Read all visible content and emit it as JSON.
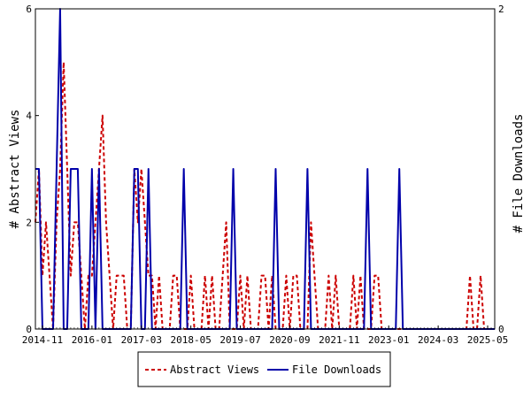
{
  "chart_data": {
    "type": "line",
    "ylabel_left": "# Abstract Views",
    "ylabel_right": "# File Downloads",
    "x_tick_labels": [
      "2014-11",
      "2016-01",
      "2017-03",
      "2018-05",
      "2019-07",
      "2020-09",
      "2021-11",
      "2023-01",
      "2024-03",
      "2025-05"
    ],
    "x_range": [
      "2014-09",
      "2025-07"
    ],
    "y_left_ticks": [
      "0",
      "2",
      "4",
      "6"
    ],
    "y_left_range": [
      0,
      6
    ],
    "y_right_ticks": [
      "0",
      "2"
    ],
    "y_right_range": [
      0,
      2
    ],
    "legend_position": "bottom-center",
    "series": [
      {
        "name": "Abstract Views",
        "axis": "left",
        "color": "#cc0000",
        "style": "dashed",
        "points": [
          [
            "2014-09",
            2
          ],
          [
            "2014-10",
            3
          ],
          [
            "2014-11",
            1
          ],
          [
            "2014-12",
            2
          ],
          [
            "2015-01",
            1
          ],
          [
            "2015-02",
            0
          ],
          [
            "2015-03",
            2
          ],
          [
            "2015-04",
            3
          ],
          [
            "2015-05",
            5
          ],
          [
            "2015-06",
            3
          ],
          [
            "2015-07",
            1
          ],
          [
            "2015-08",
            2
          ],
          [
            "2015-09",
            2
          ],
          [
            "2015-10",
            1
          ],
          [
            "2015-11",
            0
          ],
          [
            "2015-12",
            1
          ],
          [
            "2016-01",
            1
          ],
          [
            "2016-02",
            2
          ],
          [
            "2016-03",
            3
          ],
          [
            "2016-04",
            4
          ],
          [
            "2016-05",
            2
          ],
          [
            "2016-06",
            1
          ],
          [
            "2016-07",
            0
          ],
          [
            "2016-08",
            1
          ],
          [
            "2016-09",
            1
          ],
          [
            "2016-10",
            1
          ],
          [
            "2016-11",
            0
          ],
          [
            "2016-12",
            0
          ],
          [
            "2017-01",
            3
          ],
          [
            "2017-02",
            2
          ],
          [
            "2017-03",
            3
          ],
          [
            "2017-04",
            2
          ],
          [
            "2017-05",
            1
          ],
          [
            "2017-06",
            1
          ],
          [
            "2017-07",
            0
          ],
          [
            "2017-08",
            1
          ],
          [
            "2017-09",
            0
          ],
          [
            "2017-10",
            0
          ],
          [
            "2017-11",
            0
          ],
          [
            "2017-12",
            1
          ],
          [
            "2018-01",
            1
          ],
          [
            "2018-02",
            0
          ],
          [
            "2018-03",
            0
          ],
          [
            "2018-04",
            0
          ],
          [
            "2018-05",
            1
          ],
          [
            "2018-06",
            0
          ],
          [
            "2018-07",
            0
          ],
          [
            "2018-08",
            0
          ],
          [
            "2018-09",
            1
          ],
          [
            "2018-10",
            0
          ],
          [
            "2018-11",
            1
          ],
          [
            "2018-12",
            0
          ],
          [
            "2019-01",
            0
          ],
          [
            "2019-02",
            1
          ],
          [
            "2019-03",
            2
          ],
          [
            "2019-04",
            0
          ],
          [
            "2019-05",
            0
          ],
          [
            "2019-06",
            0
          ],
          [
            "2019-07",
            1
          ],
          [
            "2019-08",
            0
          ],
          [
            "2019-09",
            1
          ],
          [
            "2019-10",
            0
          ],
          [
            "2019-11",
            0
          ],
          [
            "2019-12",
            0
          ],
          [
            "2020-01",
            1
          ],
          [
            "2020-02",
            1
          ],
          [
            "2020-03",
            0
          ],
          [
            "2020-04",
            1
          ],
          [
            "2020-05",
            0
          ],
          [
            "2020-06",
            0
          ],
          [
            "2020-07",
            0
          ],
          [
            "2020-08",
            1
          ],
          [
            "2020-09",
            0
          ],
          [
            "2020-10",
            1
          ],
          [
            "2020-11",
            1
          ],
          [
            "2020-12",
            0
          ],
          [
            "2021-01",
            0
          ],
          [
            "2021-02",
            0
          ],
          [
            "2021-03",
            2
          ],
          [
            "2021-04",
            1
          ],
          [
            "2021-05",
            0
          ],
          [
            "2021-06",
            0
          ],
          [
            "2021-07",
            0
          ],
          [
            "2021-08",
            1
          ],
          [
            "2021-09",
            0
          ],
          [
            "2021-10",
            1
          ],
          [
            "2021-11",
            0
          ],
          [
            "2021-12",
            0
          ],
          [
            "2022-01",
            0
          ],
          [
            "2022-02",
            0
          ],
          [
            "2022-03",
            1
          ],
          [
            "2022-04",
            0
          ],
          [
            "2022-05",
            1
          ],
          [
            "2022-06",
            0
          ],
          [
            "2022-07",
            0
          ],
          [
            "2022-08",
            0
          ],
          [
            "2022-09",
            1
          ],
          [
            "2022-10",
            1
          ],
          [
            "2022-11",
            0
          ],
          [
            "2022-12",
            0
          ],
          [
            "2023-01",
            0
          ],
          [
            "2024-11",
            0
          ],
          [
            "2024-12",
            1
          ],
          [
            "2025-01",
            0
          ],
          [
            "2025-02",
            0
          ],
          [
            "2025-03",
            1
          ],
          [
            "2025-04",
            0
          ],
          [
            "2025-07",
            0
          ]
        ]
      },
      {
        "name": "File Downloads",
        "axis": "right",
        "color": "#0000aa",
        "style": "solid",
        "points": [
          [
            "2014-09",
            1
          ],
          [
            "2014-10",
            1
          ],
          [
            "2014-11",
            0
          ],
          [
            "2014-12",
            0
          ],
          [
            "2015-01",
            0
          ],
          [
            "2015-02",
            0
          ],
          [
            "2015-03",
            1
          ],
          [
            "2015-04",
            2
          ],
          [
            "2015-05",
            0
          ],
          [
            "2015-06",
            0
          ],
          [
            "2015-07",
            1
          ],
          [
            "2015-08",
            1
          ],
          [
            "2015-09",
            1
          ],
          [
            "2015-10",
            0
          ],
          [
            "2015-11",
            0
          ],
          [
            "2015-12",
            0
          ],
          [
            "2016-01",
            1
          ],
          [
            "2016-02",
            0
          ],
          [
            "2016-03",
            1
          ],
          [
            "2016-04",
            0
          ],
          [
            "2016-05",
            0
          ],
          [
            "2016-06",
            0
          ],
          [
            "2016-07",
            0
          ],
          [
            "2016-08",
            0
          ],
          [
            "2016-09",
            0
          ],
          [
            "2016-10",
            0
          ],
          [
            "2016-11",
            0
          ],
          [
            "2016-12",
            0
          ],
          [
            "2017-01",
            1
          ],
          [
            "2017-02",
            1
          ],
          [
            "2017-03",
            0
          ],
          [
            "2017-04",
            0
          ],
          [
            "2017-05",
            1
          ],
          [
            "2017-06",
            0
          ],
          [
            "2017-07",
            0
          ],
          [
            "2017-08",
            0
          ],
          [
            "2017-09",
            0
          ],
          [
            "2017-10",
            0
          ],
          [
            "2017-11",
            0
          ],
          [
            "2017-12",
            0
          ],
          [
            "2018-01",
            0
          ],
          [
            "2018-02",
            0
          ],
          [
            "2018-03",
            1
          ],
          [
            "2018-04",
            0
          ],
          [
            "2018-05",
            0
          ],
          [
            "2018-06",
            0
          ],
          [
            "2018-07",
            0
          ],
          [
            "2018-08",
            0
          ],
          [
            "2018-09",
            0
          ],
          [
            "2018-10",
            0
          ],
          [
            "2018-11",
            0
          ],
          [
            "2018-12",
            0
          ],
          [
            "2019-01",
            0
          ],
          [
            "2019-02",
            0
          ],
          [
            "2019-03",
            0
          ],
          [
            "2019-04",
            0
          ],
          [
            "2019-05",
            1
          ],
          [
            "2019-06",
            0
          ],
          [
            "2019-07",
            0
          ],
          [
            "2019-08",
            0
          ],
          [
            "2019-09",
            0
          ],
          [
            "2019-10",
            0
          ],
          [
            "2019-11",
            0
          ],
          [
            "2019-12",
            0
          ],
          [
            "2020-01",
            0
          ],
          [
            "2020-02",
            0
          ],
          [
            "2020-03",
            0
          ],
          [
            "2020-04",
            0
          ],
          [
            "2020-05",
            1
          ],
          [
            "2020-06",
            0
          ],
          [
            "2020-07",
            0
          ],
          [
            "2020-08",
            0
          ],
          [
            "2020-09",
            0
          ],
          [
            "2020-10",
            0
          ],
          [
            "2020-11",
            0
          ],
          [
            "2020-12",
            0
          ],
          [
            "2021-01",
            0
          ],
          [
            "2021-02",
            1
          ],
          [
            "2021-03",
            0
          ],
          [
            "2021-04",
            0
          ],
          [
            "2021-05",
            0
          ],
          [
            "2021-06",
            0
          ],
          [
            "2021-07",
            0
          ],
          [
            "2021-08",
            0
          ],
          [
            "2021-09",
            0
          ],
          [
            "2021-10",
            0
          ],
          [
            "2021-11",
            0
          ],
          [
            "2021-12",
            0
          ],
          [
            "2022-01",
            0
          ],
          [
            "2022-02",
            0
          ],
          [
            "2022-03",
            0
          ],
          [
            "2022-04",
            0
          ],
          [
            "2022-05",
            0
          ],
          [
            "2022-06",
            0
          ],
          [
            "2022-07",
            1
          ],
          [
            "2022-08",
            0
          ],
          [
            "2022-09",
            0
          ],
          [
            "2022-10",
            0
          ],
          [
            "2022-11",
            0
          ],
          [
            "2022-12",
            0
          ],
          [
            "2023-01",
            0
          ],
          [
            "2023-02",
            0
          ],
          [
            "2023-03",
            0
          ],
          [
            "2023-04",
            1
          ],
          [
            "2023-05",
            0
          ],
          [
            "2023-06",
            0
          ],
          [
            "2025-07",
            0
          ]
        ]
      }
    ]
  }
}
